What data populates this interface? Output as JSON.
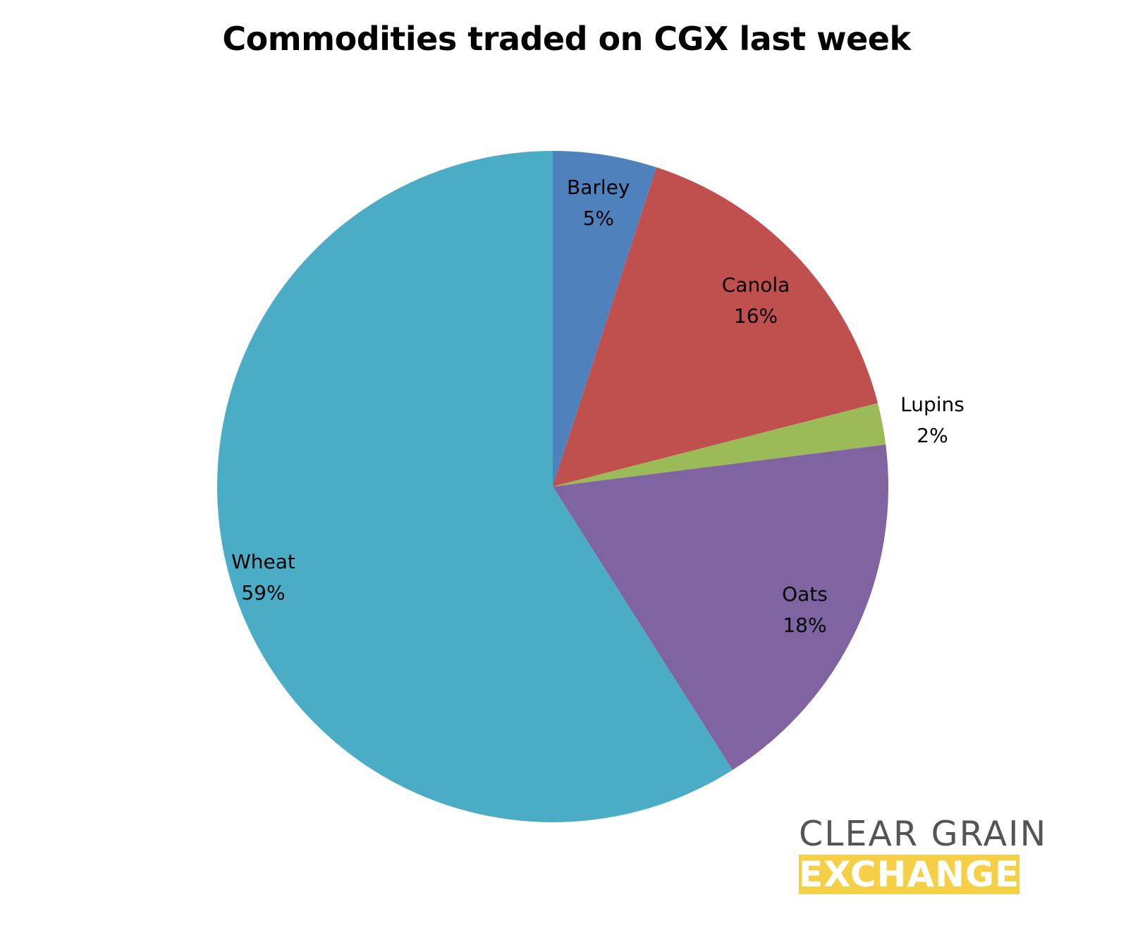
{
  "chart_data": {
    "type": "pie",
    "title": "Commodities traded on CGX last week",
    "start_angle_deg": 0,
    "direction": "clockwise",
    "slices": [
      {
        "label": "Barley",
        "value": 5,
        "value_label": "5%",
        "color": "#4f81bd"
      },
      {
        "label": "Canola",
        "value": 16,
        "value_label": "16%",
        "color": "#c0504d"
      },
      {
        "label": "Lupins",
        "value": 2,
        "value_label": "2%",
        "color": "#9bbb59"
      },
      {
        "label": "Oats",
        "value": 18,
        "value_label": "18%",
        "color": "#8064a2"
      },
      {
        "label": "Wheat",
        "value": 59,
        "value_label": "59%",
        "color": "#4bacc6"
      }
    ]
  },
  "logo": {
    "line1": "CLEAR GRAIN",
    "line2": "EXCHANGE",
    "accent_color": "#f5cf45",
    "text_color": "#555555"
  }
}
